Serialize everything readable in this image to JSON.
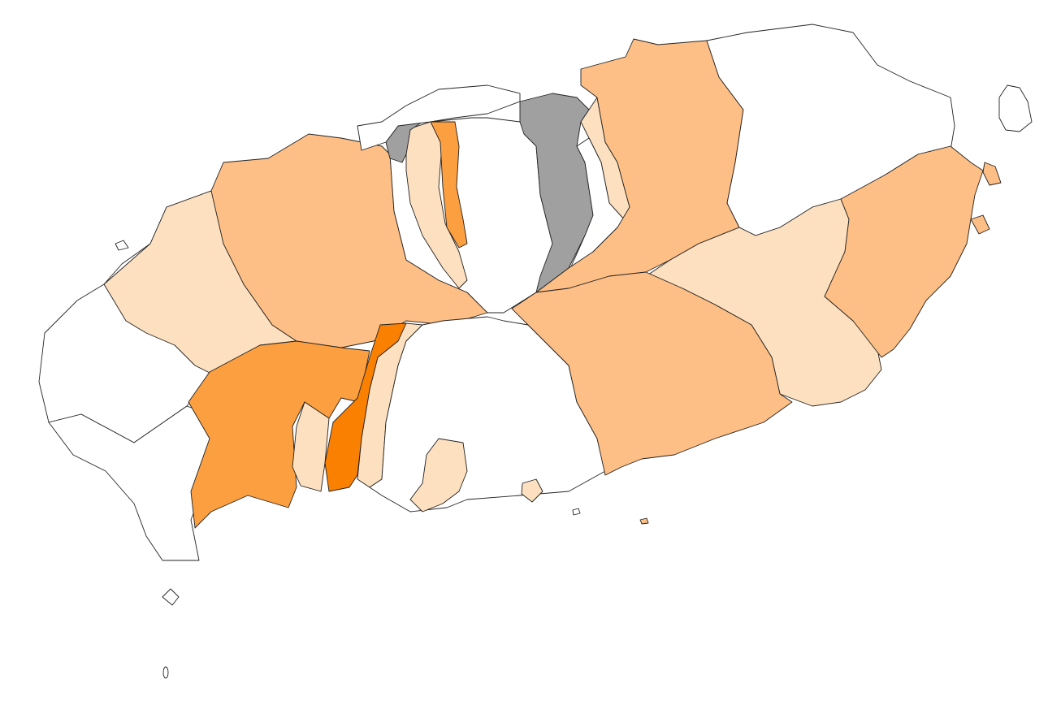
{
  "map": {
    "type": "choropleth",
    "legend": null,
    "colors": {
      "class_0": "#ffffff",
      "class_1": "#fde0c0",
      "class_2": "#fdbf86",
      "class_3": "#fb9f40",
      "class_4": "#f98000",
      "no_data": "#a0a0a0",
      "border": "#222222"
    },
    "regions": [
      {
        "id": "west-coast",
        "class": "class_0"
      },
      {
        "id": "southwest-coast",
        "class": "class_0"
      },
      {
        "id": "west-inland",
        "class": "class_1"
      },
      {
        "id": "northwest-large",
        "class": "class_2"
      },
      {
        "id": "southwest-orange",
        "class": "class_3"
      },
      {
        "id": "south-strip-orange",
        "class": "class_4"
      },
      {
        "id": "south-light-strip",
        "class": "class_1"
      },
      {
        "id": "south-small-light",
        "class": "class_1"
      },
      {
        "id": "south-coast-light",
        "class": "class_1"
      },
      {
        "id": "north-center-strip",
        "class": "class_3"
      },
      {
        "id": "north-center-light",
        "class": "class_1"
      },
      {
        "id": "north-gray-cluster",
        "class": "no_data"
      },
      {
        "id": "north-west-gray",
        "class": "no_data"
      },
      {
        "id": "northeast-large",
        "class": "class_2"
      },
      {
        "id": "northeast-light-strip",
        "class": "class_1"
      },
      {
        "id": "northeast-coast",
        "class": "class_0"
      },
      {
        "id": "east-light",
        "class": "class_1"
      },
      {
        "id": "east-medium",
        "class": "class_2"
      },
      {
        "id": "southeast-large",
        "class": "class_2"
      },
      {
        "id": "south-center-strips",
        "class": "class_0"
      },
      {
        "id": "north-center-strips",
        "class": "class_0"
      }
    ]
  }
}
